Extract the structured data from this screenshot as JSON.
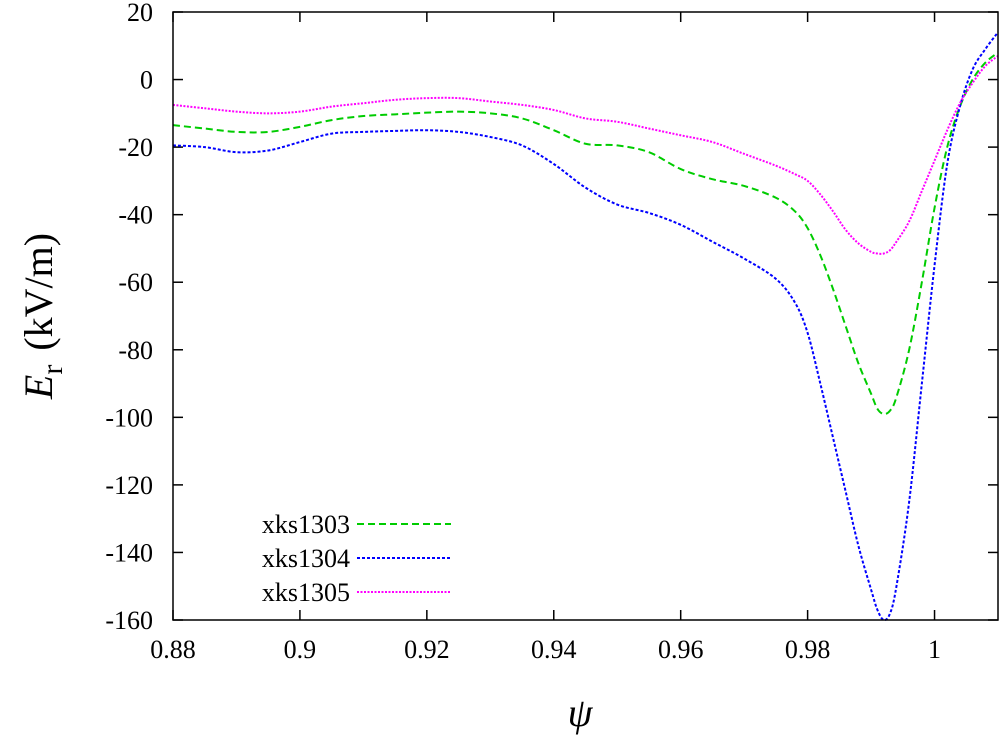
{
  "chart_data": {
    "type": "line",
    "title": "",
    "xlabel": "ψ",
    "ylabel_symbol": "E",
    "ylabel_subscript": "r",
    "ylabel_unit": "(kV/m)",
    "xlim": [
      0.88,
      1.01
    ],
    "ylim": [
      -160,
      20
    ],
    "x_ticks": [
      0.88,
      0.9,
      0.92,
      0.94,
      0.96,
      0.98,
      1.0
    ],
    "x_tick_labels": [
      "0.88",
      "0.9",
      "0.92",
      "0.94",
      "0.96",
      "0.98",
      "1"
    ],
    "y_ticks": [
      20,
      0,
      -20,
      -40,
      -60,
      -80,
      -100,
      -120,
      -140,
      -160
    ],
    "y_tick_labels": [
      "20",
      "0",
      "-20",
      "-40",
      "-60",
      "-80",
      "-100",
      "-120",
      "-140",
      "-160"
    ],
    "grid": false,
    "legend_position": "bottom-left",
    "series": [
      {
        "name": "xks1303",
        "color": "#00cc00",
        "dash": "dashed",
        "x": [
          0.88,
          0.885,
          0.89,
          0.895,
          0.9,
          0.905,
          0.91,
          0.915,
          0.92,
          0.925,
          0.93,
          0.935,
          0.94,
          0.945,
          0.95,
          0.955,
          0.96,
          0.965,
          0.97,
          0.975,
          0.978,
          0.98,
          0.982,
          0.984,
          0.986,
          0.988,
          0.99,
          0.991,
          0.992,
          0.993,
          0.994,
          0.996,
          0.998,
          1.0,
          1.002,
          1.004,
          1.006,
          1.008,
          1.01
        ],
        "y": [
          -13.5,
          -14.5,
          -15.5,
          -15.5,
          -14.0,
          -12.0,
          -10.8,
          -10.3,
          -9.8,
          -9.5,
          -10.0,
          -11.5,
          -15.0,
          -19.0,
          -19.5,
          -21.5,
          -26.5,
          -29.5,
          -31.5,
          -35.0,
          -39.0,
          -44.0,
          -52.0,
          -62.0,
          -73.0,
          -84.0,
          -93.0,
          -97.5,
          -99.0,
          -98.0,
          -94.0,
          -80.0,
          -60.0,
          -38.0,
          -20.0,
          -8.0,
          0.0,
          5.0,
          8.0
        ]
      },
      {
        "name": "xks1304",
        "color": "#0000ff",
        "dash": "dotted",
        "x": [
          0.88,
          0.885,
          0.89,
          0.895,
          0.9,
          0.905,
          0.91,
          0.915,
          0.92,
          0.925,
          0.93,
          0.935,
          0.94,
          0.945,
          0.95,
          0.955,
          0.96,
          0.965,
          0.97,
          0.975,
          0.978,
          0.98,
          0.982,
          0.984,
          0.986,
          0.988,
          0.99,
          0.991,
          0.992,
          0.993,
          0.994,
          0.996,
          0.998,
          1.0,
          1.002,
          1.004,
          1.006,
          1.008,
          1.01
        ],
        "y": [
          -19.5,
          -20.0,
          -21.5,
          -21.0,
          -18.5,
          -16.0,
          -15.5,
          -15.2,
          -15.0,
          -15.5,
          -17.0,
          -19.5,
          -25.0,
          -32.0,
          -37.0,
          -39.5,
          -43.0,
          -48.0,
          -53.0,
          -59.0,
          -66.0,
          -75.0,
          -90.0,
          -106.0,
          -122.0,
          -138.0,
          -151.0,
          -157.0,
          -160.0,
          -158.0,
          -150.0,
          -125.0,
          -90.0,
          -55.0,
          -25.0,
          -8.0,
          3.0,
          9.0,
          14.0
        ]
      },
      {
        "name": "xks1305",
        "color": "#ff00ff",
        "dash": "dotted-fine",
        "x": [
          0.88,
          0.885,
          0.89,
          0.895,
          0.9,
          0.905,
          0.91,
          0.915,
          0.92,
          0.925,
          0.93,
          0.935,
          0.94,
          0.945,
          0.95,
          0.955,
          0.96,
          0.965,
          0.97,
          0.975,
          0.978,
          0.98,
          0.982,
          0.984,
          0.986,
          0.988,
          0.99,
          0.991,
          0.992,
          0.993,
          0.994,
          0.996,
          0.998,
          1.0,
          1.002,
          1.004,
          1.006,
          1.008,
          1.01
        ],
        "y": [
          -7.5,
          -8.5,
          -9.5,
          -10.0,
          -9.5,
          -8.0,
          -7.0,
          -6.0,
          -5.5,
          -5.5,
          -6.5,
          -7.5,
          -9.0,
          -11.5,
          -12.5,
          -14.5,
          -16.5,
          -18.5,
          -22.0,
          -25.5,
          -28.0,
          -30.0,
          -34.0,
          -39.0,
          -44.5,
          -48.5,
          -51.0,
          -51.5,
          -51.5,
          -50.5,
          -48.0,
          -42.0,
          -33.0,
          -24.0,
          -15.0,
          -7.0,
          -1.0,
          4.0,
          7.0
        ]
      }
    ]
  }
}
